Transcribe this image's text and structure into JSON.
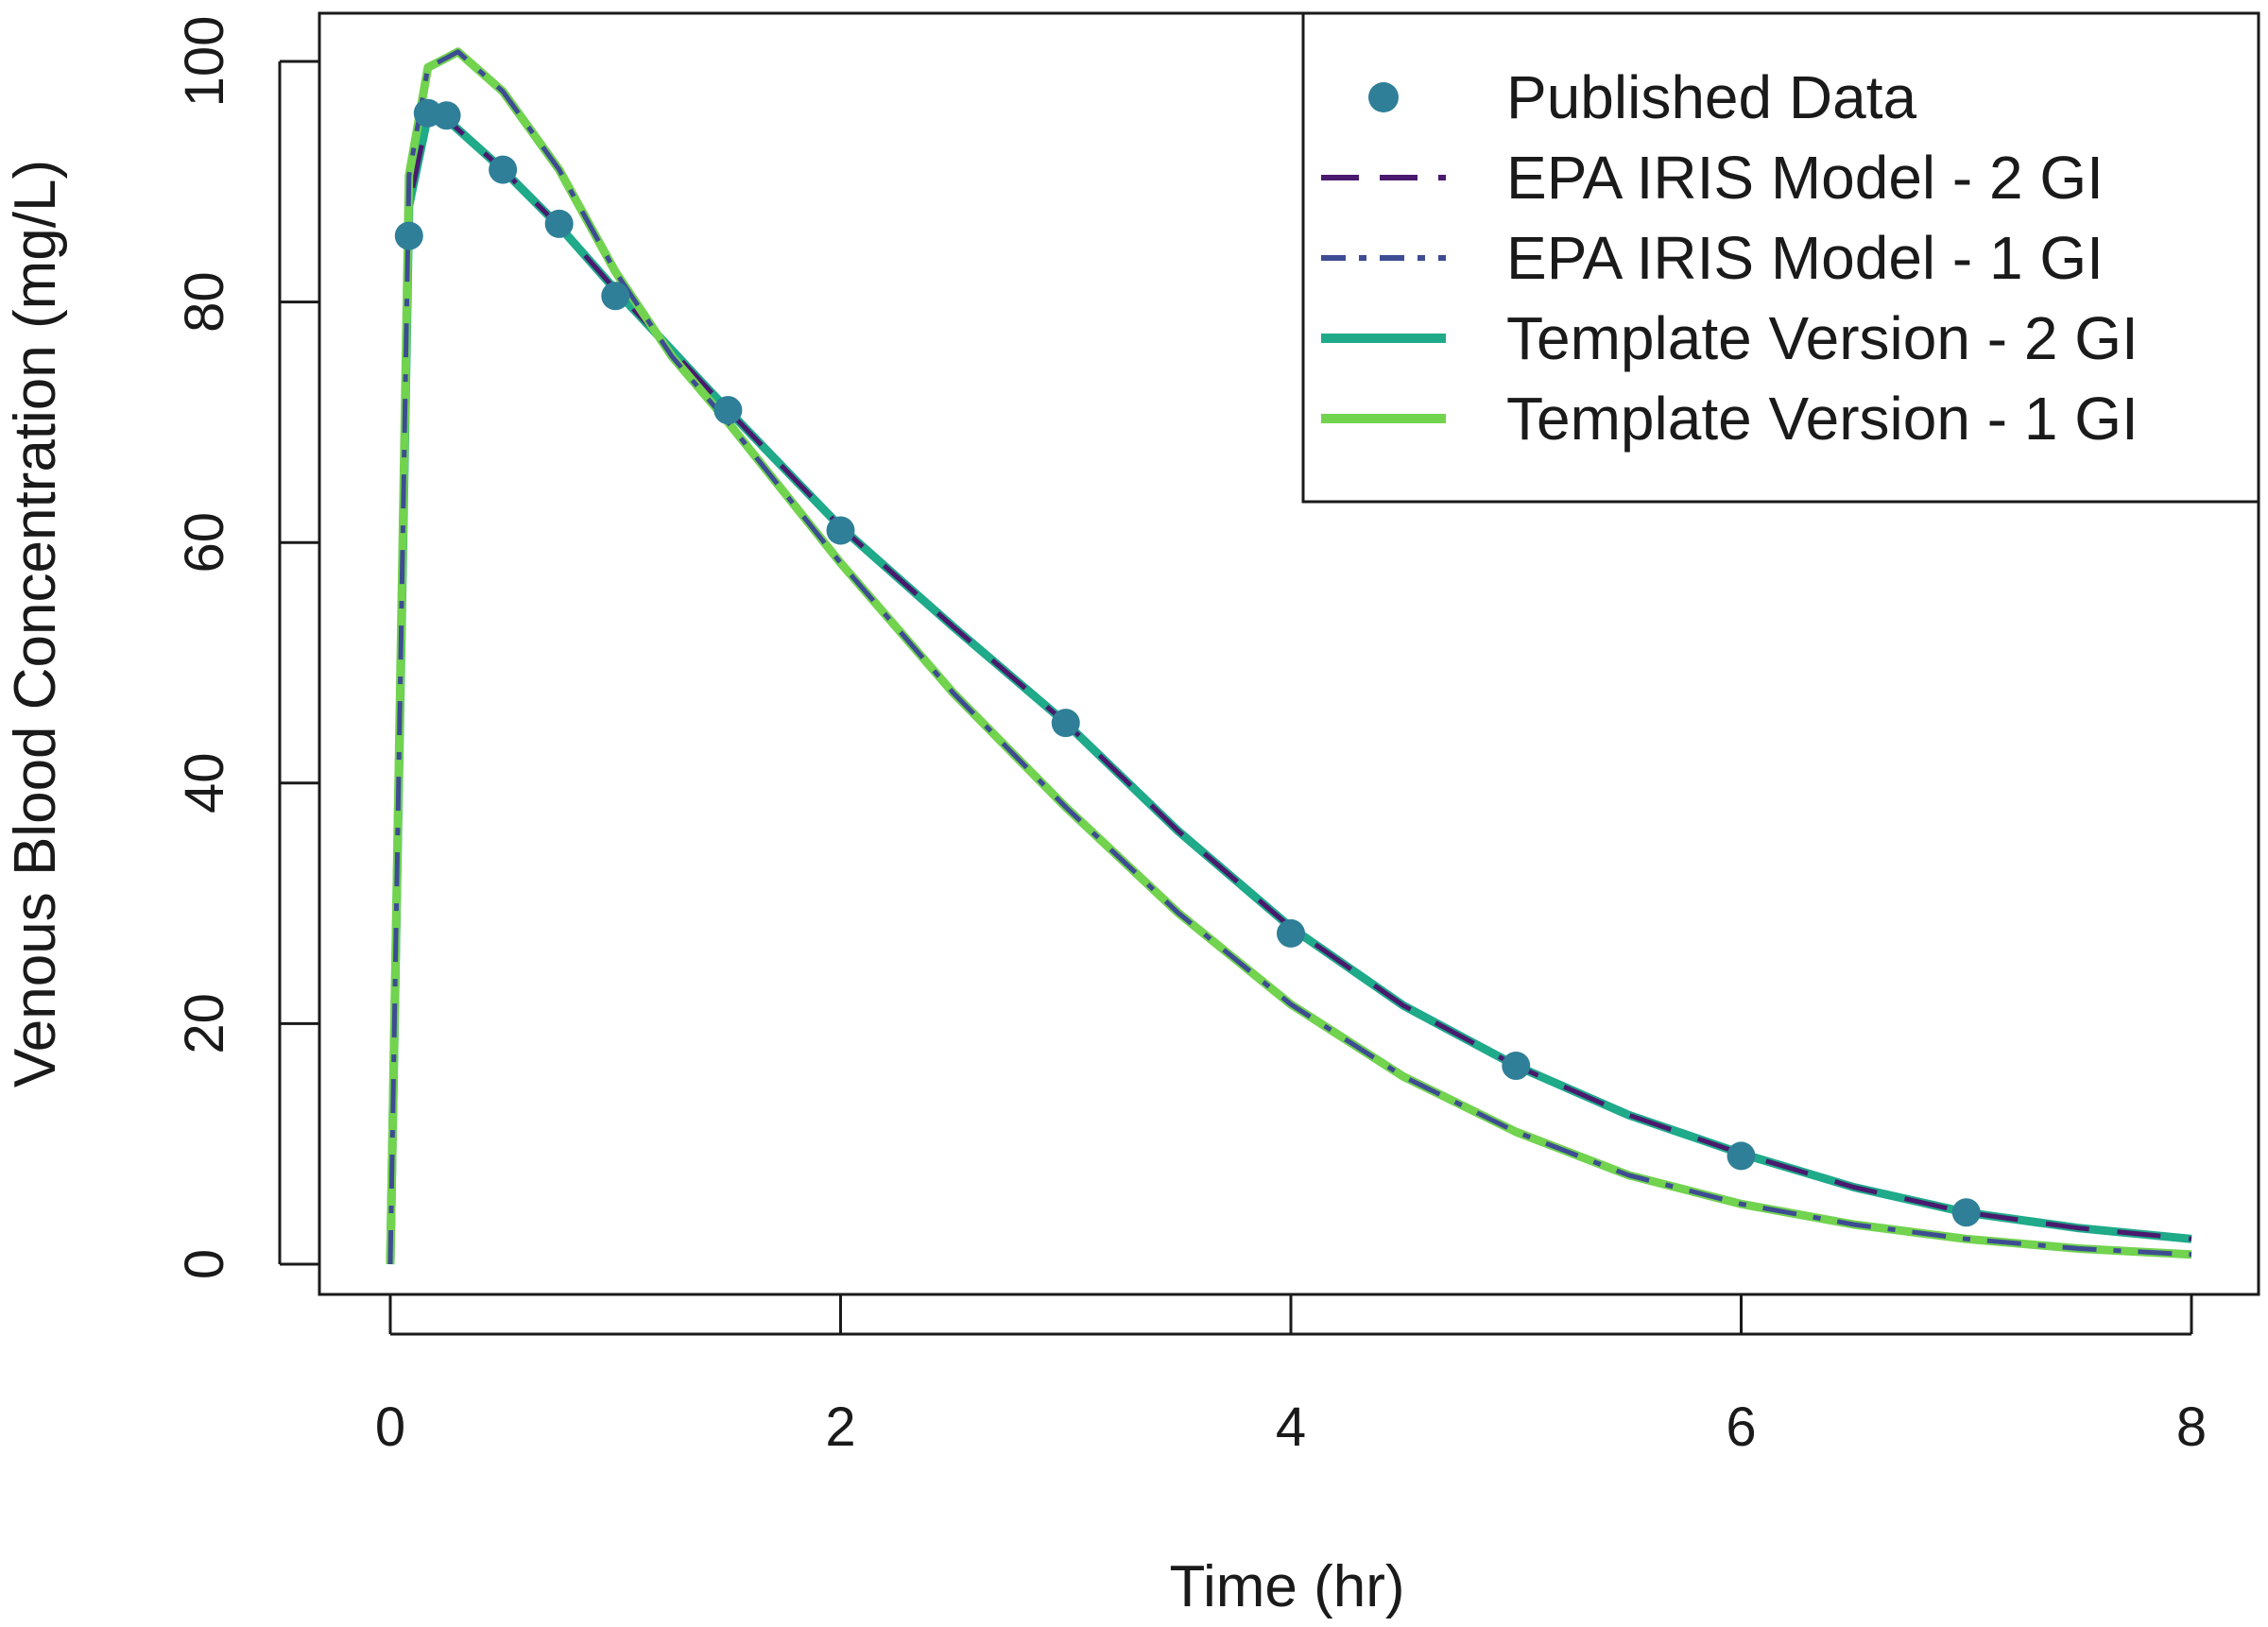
{
  "chart_data": {
    "type": "line",
    "title": "",
    "xlabel": "Time (hr)",
    "ylabel": "Venous Blood Concentration (mg/L)",
    "xlim": [
      0,
      8
    ],
    "ylim": [
      0,
      100
    ],
    "xticks": [
      0,
      2,
      4,
      6,
      8
    ],
    "yticks": [
      0,
      20,
      40,
      60,
      80,
      100
    ],
    "grid": false,
    "legend_position": "top-right",
    "scatter": {
      "name": "Published Data",
      "color": "#2f7f98",
      "x": [
        0.083,
        0.167,
        0.25,
        0.5,
        0.75,
        1,
        1.5,
        2,
        3,
        4,
        5,
        6,
        7
      ],
      "y": [
        85.5,
        95.7,
        95.5,
        91,
        86.5,
        80.5,
        71,
        61,
        45,
        27.5,
        16.5,
        9,
        4.3
      ]
    },
    "series": [
      {
        "name": "Template Version - 2 GI",
        "color": "#1faa8a",
        "style": "solid",
        "width": 9,
        "x": [
          0,
          0.083,
          0.167,
          0.25,
          0.5,
          0.75,
          1,
          1.25,
          1.5,
          2,
          2.5,
          3,
          3.5,
          4,
          4.5,
          5,
          5.5,
          6,
          6.5,
          7,
          7.5,
          8
        ],
        "y": [
          0,
          88,
          95.5,
          95.2,
          91,
          86.3,
          81,
          76,
          71,
          61.3,
          53,
          45,
          36,
          28,
          21.5,
          16.5,
          12.4,
          9.2,
          6.4,
          4.3,
          3,
          2.1
        ]
      },
      {
        "name": "EPA IRIS Model - 2 GI",
        "color": "#4a1a6e",
        "style": "dashed",
        "width": 5,
        "x": [
          0,
          0.083,
          0.167,
          0.25,
          0.5,
          0.75,
          1,
          1.25,
          1.5,
          2,
          2.5,
          3,
          3.5,
          4,
          4.5,
          5,
          5.5,
          6,
          6.5,
          7,
          7.5,
          8
        ],
        "y": [
          0,
          88,
          95.5,
          95.2,
          91,
          86.3,
          81,
          76,
          71,
          61.3,
          53,
          45,
          36,
          28,
          21.5,
          16.5,
          12.4,
          9.2,
          6.4,
          4.3,
          3,
          2.1
        ]
      },
      {
        "name": "Template Version - 1 GI",
        "color": "#72d34f",
        "style": "solid",
        "width": 9,
        "x": [
          0,
          0.083,
          0.167,
          0.25,
          0.3,
          0.5,
          0.75,
          1,
          1.25,
          1.5,
          2,
          2.5,
          3,
          3.5,
          4,
          4.5,
          5,
          5.5,
          6,
          6.5,
          7,
          7.5,
          8
        ],
        "y": [
          0,
          90.5,
          99.5,
          100.3,
          100.8,
          97.5,
          91,
          82.5,
          75.5,
          70,
          58.3,
          47.5,
          38,
          29.2,
          21.6,
          15.6,
          11,
          7.4,
          5,
          3.3,
          2.1,
          1.3,
          0.8
        ]
      },
      {
        "name": "EPA IRIS Model - 1 GI",
        "color": "#3e4c93",
        "style": "dashdot",
        "width": 5,
        "x": [
          0,
          0.083,
          0.167,
          0.25,
          0.3,
          0.5,
          0.75,
          1,
          1.25,
          1.5,
          2,
          2.5,
          3,
          3.5,
          4,
          4.5,
          5,
          5.5,
          6,
          6.5,
          7,
          7.5,
          8
        ],
        "y": [
          0,
          90.5,
          99.5,
          100.3,
          100.8,
          97.5,
          91,
          82.5,
          75.5,
          70,
          58.3,
          47.5,
          38,
          29.2,
          21.6,
          15.6,
          11,
          7.4,
          5,
          3.3,
          2.1,
          1.3,
          0.8
        ]
      }
    ],
    "legend": [
      {
        "label": "Published Data",
        "kind": "point",
        "color": "#2f7f98",
        "style": "point"
      },
      {
        "label": "EPA IRIS Model - 2 GI",
        "kind": "line",
        "color": "#4a1a6e",
        "style": "dashed"
      },
      {
        "label": "EPA IRIS Model - 1 GI",
        "kind": "line",
        "color": "#3e4c93",
        "style": "dashdot"
      },
      {
        "label": "Template Version - 2 GI",
        "kind": "line",
        "color": "#1faa8a",
        "style": "solid"
      },
      {
        "label": "Template Version - 1 GI",
        "kind": "line",
        "color": "#72d34f",
        "style": "solid"
      }
    ]
  }
}
